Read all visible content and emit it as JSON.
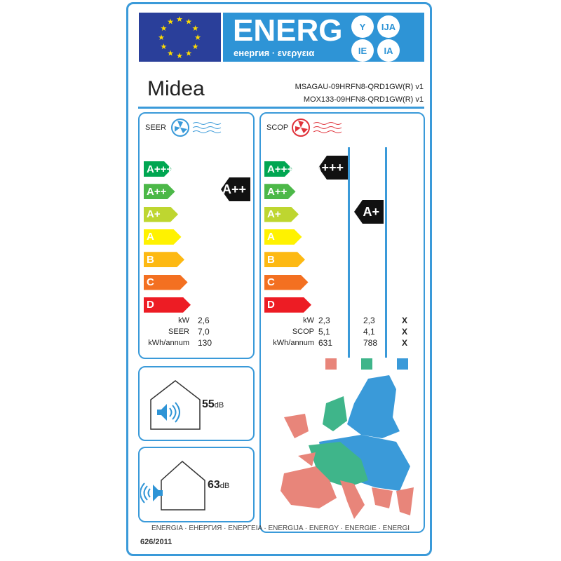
{
  "header": {
    "energy_title": "ENERG",
    "energy_subtitle": "енергия · ενεργεια",
    "suffixes": [
      "Y",
      "IJA",
      "IE",
      "IA"
    ]
  },
  "brand": "Midea",
  "models": [
    "MSAGAU-09HRFN8-QRD1GW(R) v1",
    "MOX133-09HFN8-QRD1GW(R) v1"
  ],
  "cooling": {
    "title": "SEER",
    "class": "A++",
    "labels": [
      "kW",
      "SEER",
      "kWh/annum"
    ],
    "values": [
      "2,6",
      "7,0",
      "130"
    ]
  },
  "heating": {
    "title": "SCOP",
    "class_warmer": "A+++",
    "class_average": "A+",
    "labels": [
      "kW",
      "SCOP",
      "kWh/annum"
    ],
    "warmer": [
      "2,3",
      "5,1",
      "631"
    ],
    "average": [
      "2,3",
      "4,1",
      "788"
    ],
    "colder": [
      "X",
      "X",
      "X"
    ],
    "zone_colors": [
      "#e8857a",
      "#3fb58a",
      "#3a9ad9"
    ]
  },
  "classes": [
    {
      "label": "A+++",
      "color": "#00a651"
    },
    {
      "label": "A++",
      "color": "#4cb848"
    },
    {
      "label": "A+",
      "color": "#bed630"
    },
    {
      "label": "A",
      "color": "#fff200"
    },
    {
      "label": "B",
      "color": "#fdb913"
    },
    {
      "label": "C",
      "color": "#f37021"
    },
    {
      "label": "D",
      "color": "#ed1c24"
    }
  ],
  "noise": {
    "indoor_value": "55",
    "outdoor_value": "63",
    "unit": "dB"
  },
  "footer": {
    "languages": "ENERGIA · ЕНЕРГИЯ · ΕΝΕΡΓΕΙΑ · ENERGIJA · ENERGY · ENERGIE · ENERGI",
    "regulation": "626/2011"
  }
}
